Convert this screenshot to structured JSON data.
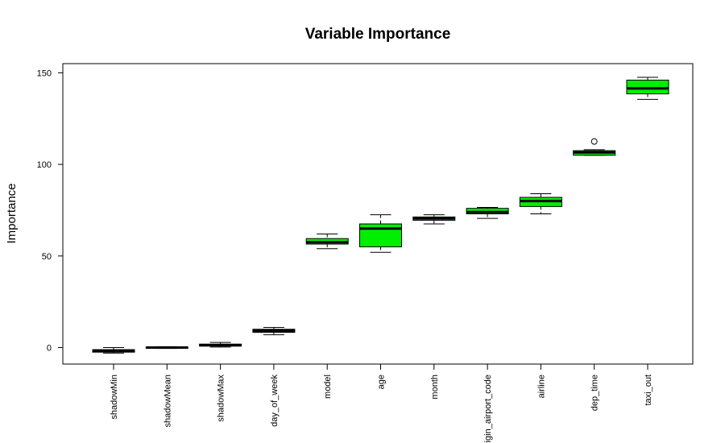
{
  "chart_data": {
    "type": "box",
    "title": "Variable Importance",
    "xlabel": "",
    "ylabel": "Importance",
    "ylim": [
      -9,
      155
    ],
    "yticks": [
      0,
      50,
      100,
      150
    ],
    "grid": false,
    "colors": {
      "shadow": "#000000",
      "real": "#00ee00",
      "outline": "#000000"
    },
    "boxes": [
      {
        "label": "shadowMin",
        "group": "shadow",
        "min": -3,
        "q1": -2.5,
        "median": -1.6,
        "q3": -1.2,
        "max": 0,
        "outliers": []
      },
      {
        "label": "shadowMean",
        "group": "shadow",
        "min": -0.5,
        "q1": -0.3,
        "median": 0,
        "q3": 0.2,
        "max": 0.5,
        "outliers": []
      },
      {
        "label": "shadowMax",
        "group": "shadow",
        "min": 0.3,
        "q1": 0.8,
        "median": 1.3,
        "q3": 1.9,
        "max": 2.8,
        "outliers": []
      },
      {
        "label": "day_of_week",
        "group": "shadow",
        "min": 7,
        "q1": 8.3,
        "median": 9.3,
        "q3": 10,
        "max": 11,
        "outliers": []
      },
      {
        "label": "model",
        "group": "real",
        "min": 54,
        "q1": 56.5,
        "median": 57.5,
        "q3": 59.5,
        "max": 62,
        "outliers": []
      },
      {
        "label": "age",
        "group": "real",
        "min": 52,
        "q1": 55,
        "median": 65,
        "q3": 67.5,
        "max": 72.5,
        "outliers": []
      },
      {
        "label": "month",
        "group": "real",
        "min": 67.5,
        "q1": 69.5,
        "median": 70.5,
        "q3": 71.3,
        "max": 72.5,
        "outliers": []
      },
      {
        "label": "origin_airport_code",
        "group": "real",
        "min": 70.5,
        "q1": 73,
        "median": 74,
        "q3": 76,
        "max": 76.5,
        "outliers": []
      },
      {
        "label": "airline",
        "group": "real",
        "min": 73,
        "q1": 77,
        "median": 80,
        "q3": 82,
        "max": 84,
        "outliers": []
      },
      {
        "label": "dep_time",
        "group": "real",
        "min": 105,
        "q1": 105,
        "median": 106.5,
        "q3": 107.5,
        "max": 108,
        "outliers": [
          112.5
        ]
      },
      {
        "label": "taxi_out",
        "group": "real",
        "min": 135.5,
        "q1": 138.5,
        "median": 141.5,
        "q3": 146,
        "max": 147.5,
        "outliers": []
      }
    ]
  }
}
